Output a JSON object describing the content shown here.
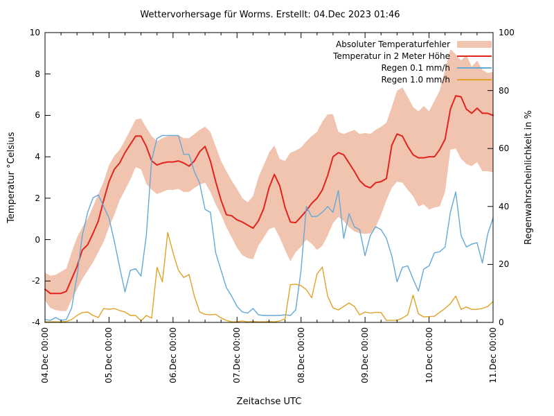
{
  "title": "Wettervorhersage für Worms. Erstellt: 04.Dec 2023 01:46",
  "legend": {
    "position": "top-right-inside",
    "items": [
      {
        "label": "Absoluter Temperaturfehler",
        "series": 0,
        "swatch": "band"
      },
      {
        "label": "Temperatur in 2 Meter Höhe",
        "series": 1,
        "swatch": "line"
      },
      {
        "label": "Regen 0.1 mm/h",
        "series": 2,
        "swatch": "line"
      },
      {
        "label": "Regen 1.0 mm/h",
        "series": 3,
        "swatch": "line"
      }
    ]
  },
  "chart_data": {
    "type": "line",
    "title": "Wettervorhersage für Worms. Erstellt: 04.Dec 2023 01:46",
    "xlabel": "Zeitachse UTC",
    "ylabel": "Temperatur °Celsius",
    "y2label": "Regenwahrscheinlichkeit in %",
    "grid": false,
    "ylim_left": [
      -4,
      10
    ],
    "ylim_right": [
      0,
      100
    ],
    "yticks_left": [
      10,
      8,
      6,
      4,
      2,
      0,
      -2,
      -4
    ],
    "yticks_right": [
      100,
      80,
      60,
      40,
      20,
      0
    ],
    "xtick_labels": [
      "04.Dec 00:00",
      "05.Dec 00:00",
      "06.Dec 00:00",
      "07.Dec 00:00",
      "08.Dec 00:00",
      "09.Dec 00:00",
      "10.Dec 00:00",
      "11.Dec 00:00"
    ],
    "x_major_tick_hours": 24,
    "x_minor_tick_hours": 6,
    "x_range_hours": [
      0,
      168
    ],
    "x_start_hour": 0,
    "x_step_hours": 2,
    "series": [
      {
        "name": "Absoluter Temperaturfehler",
        "role": "band",
        "axis": "left",
        "color": "#f1c4b0",
        "upper": [
          -1.6,
          -1.75,
          -1.7,
          -1.55,
          -1.4,
          -0.6,
          0.1,
          0.6,
          1.0,
          1.6,
          2.2,
          2.8,
          3.6,
          4.05,
          4.35,
          4.8,
          5.3,
          5.8,
          5.85,
          5.4,
          5.0,
          4.75,
          4.9,
          5.0,
          5.0,
          5.05,
          4.9,
          4.9,
          5.1,
          5.3,
          5.45,
          5.2,
          4.5,
          3.8,
          3.3,
          2.85,
          2.45,
          2.0,
          1.8,
          2.1,
          3.0,
          3.6,
          4.2,
          4.55,
          3.9,
          3.8,
          4.2,
          4.3,
          4.45,
          4.75,
          5.0,
          5.2,
          5.7,
          6.05,
          6.05,
          5.2,
          5.1,
          5.2,
          5.3,
          5.1,
          5.15,
          5.1,
          5.3,
          5.45,
          5.65,
          6.4,
          7.2,
          7.35,
          6.9,
          6.4,
          6.2,
          6.45,
          6.2,
          6.7,
          7.2,
          8.2,
          9.2,
          8.95,
          8.65,
          8.9,
          8.35,
          8.65,
          8.2,
          8.05,
          8.1
        ],
        "lower": [
          -2.95,
          -3.3,
          -3.4,
          -3.45,
          -3.45,
          -2.9,
          -2.4,
          -1.9,
          -1.5,
          -1.1,
          -0.6,
          -0.1,
          0.6,
          1.2,
          1.9,
          2.4,
          2.9,
          3.5,
          3.4,
          2.7,
          2.4,
          2.2,
          2.3,
          2.4,
          2.4,
          2.45,
          2.3,
          2.3,
          2.5,
          2.65,
          2.75,
          2.3,
          1.7,
          1.2,
          0.6,
          0.1,
          -0.4,
          -0.75,
          -0.9,
          -0.95,
          -0.3,
          0.1,
          0.5,
          0.6,
          0.1,
          -0.5,
          -1.05,
          -0.6,
          -0.35,
          0.0,
          -0.2,
          -0.5,
          -0.3,
          0.2,
          0.8,
          1.1,
          0.9,
          0.6,
          0.4,
          0.3,
          0.28,
          0.3,
          0.6,
          1.2,
          1.9,
          2.5,
          2.8,
          2.75,
          2.4,
          2.1,
          1.6,
          1.7,
          1.45,
          1.55,
          1.6,
          2.3,
          4.35,
          4.4,
          3.9,
          3.65,
          3.55,
          3.75,
          3.3,
          3.3,
          3.25
        ]
      },
      {
        "name": "Temperatur in 2 Meter Höhe",
        "role": "line",
        "axis": "left",
        "color": "#e0231c",
        "width": 2,
        "values": [
          -2.4,
          -2.6,
          -2.6,
          -2.6,
          -2.5,
          -1.9,
          -1.3,
          -0.5,
          -0.25,
          0.3,
          0.9,
          1.9,
          2.8,
          3.4,
          3.7,
          4.2,
          4.6,
          5.0,
          5.0,
          4.5,
          3.8,
          3.6,
          3.7,
          3.75,
          3.75,
          3.8,
          3.7,
          3.55,
          3.8,
          4.25,
          4.5,
          3.8,
          2.8,
          1.9,
          1.2,
          1.15,
          0.95,
          0.85,
          0.7,
          0.55,
          0.9,
          1.5,
          2.5,
          3.15,
          2.6,
          1.55,
          0.85,
          0.82,
          1.1,
          1.4,
          1.75,
          2.0,
          2.4,
          3.1,
          4.0,
          4.2,
          4.1,
          3.7,
          3.3,
          2.85,
          2.6,
          2.5,
          2.75,
          2.8,
          2.95,
          4.55,
          5.1,
          5.0,
          4.5,
          4.1,
          3.95,
          3.95,
          4.0,
          4.0,
          4.35,
          4.85,
          6.3,
          6.95,
          6.9,
          6.3,
          6.1,
          6.35,
          6.1,
          6.1,
          6.0
        ]
      },
      {
        "name": "Regen 0.1 mm/h",
        "role": "line",
        "axis": "right",
        "color": "#63a8d8",
        "width": 1.4,
        "values": [
          1,
          0.7,
          1.7,
          0.7,
          1,
          5,
          16,
          30,
          38,
          43,
          44,
          40,
          36,
          28,
          19,
          10.5,
          18,
          18.5,
          16,
          30,
          56,
          63.5,
          64.5,
          64.5,
          64.5,
          64.5,
          58,
          58,
          52,
          48,
          39,
          38,
          24,
          18,
          12,
          9,
          5.5,
          3.6,
          3.2,
          4.8,
          2.6,
          2.4,
          2.4,
          2.4,
          2.4,
          2.6,
          2.4,
          4.3,
          18,
          40,
          36.5,
          36.6,
          38,
          40,
          38,
          45.5,
          29,
          37.5,
          33,
          32,
          23,
          30,
          33,
          32,
          29,
          23,
          14,
          19,
          19.5,
          15,
          10.8,
          18.4,
          19.5,
          24,
          24.4,
          26,
          38,
          45,
          30,
          26,
          27,
          27.5,
          20.5,
          30.5,
          36
        ]
      },
      {
        "name": "Regen 1.0 mm/h",
        "role": "line",
        "axis": "right",
        "color": "#dfa226",
        "width": 1.4,
        "values": [
          0.2,
          0.2,
          0.2,
          0.2,
          0.3,
          1,
          2.4,
          3.4,
          3.6,
          2.4,
          1.7,
          4.8,
          4.5,
          4.8,
          4.1,
          3.6,
          2.4,
          2.4,
          0.5,
          2.4,
          1.5,
          19,
          14,
          31,
          24,
          18,
          15.5,
          16.5,
          9,
          3.6,
          2.8,
          2.6,
          2.8,
          1.5,
          0.7,
          0.2,
          0.2,
          0.5,
          0.2,
          0.3,
          0.2,
          0.2,
          0.3,
          0.2,
          0.5,
          1.2,
          13,
          13.2,
          12.7,
          11.3,
          8.5,
          16.7,
          19.1,
          9,
          5,
          4.3,
          5.5,
          6.7,
          5.5,
          2.6,
          3.6,
          3.2,
          3.5,
          3.4,
          0.7,
          0.7,
          0.7,
          1.5,
          2.6,
          9.4,
          3,
          1.9,
          2.0,
          2.1,
          3.5,
          4.8,
          6.5,
          9.1,
          4.5,
          5.3,
          4.5,
          4.5,
          4.8,
          5.5,
          7.2
        ]
      }
    ]
  }
}
